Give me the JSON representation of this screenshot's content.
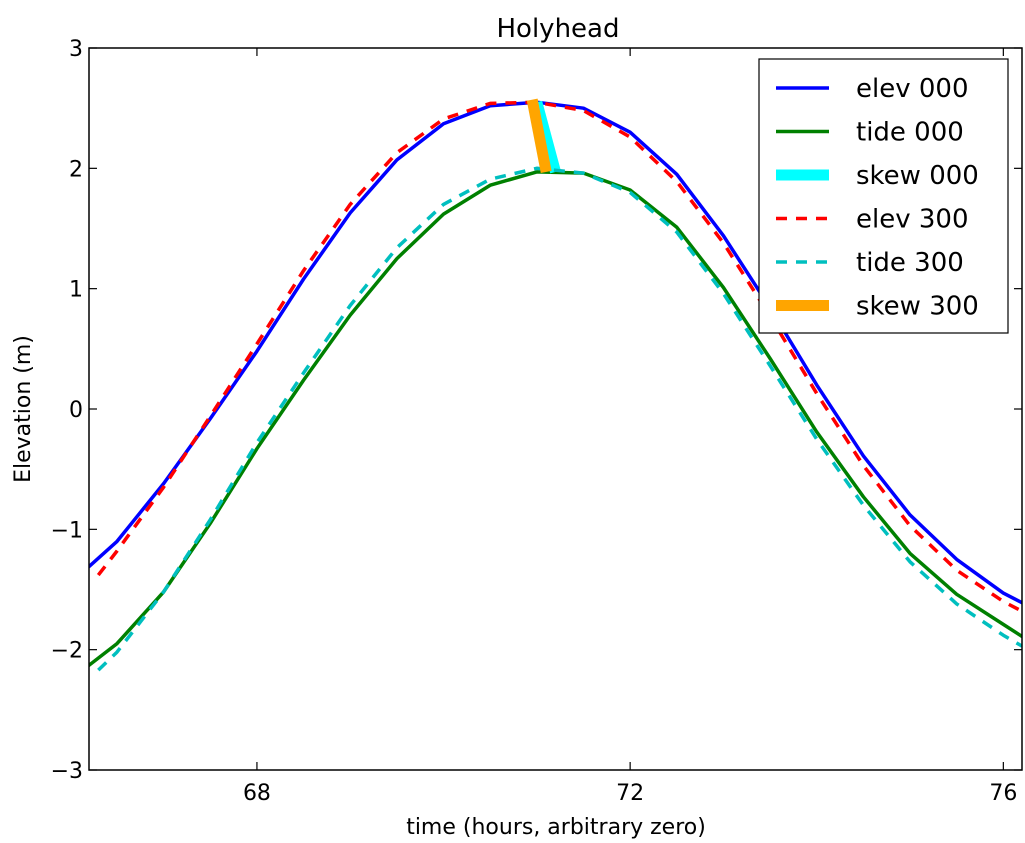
{
  "chart_data": {
    "type": "line",
    "title": "Holyhead",
    "xlabel": "time (hours, arbitrary zero)",
    "ylabel": "Elevation (m)",
    "xlim": [
      66.2,
      76.2
    ],
    "ylim": [
      -3,
      3
    ],
    "xticks": [
      68,
      72,
      76
    ],
    "xtick_labels": [
      "68",
      "72",
      "76"
    ],
    "yticks": [
      -3,
      -2,
      -1,
      0,
      1,
      2,
      3
    ],
    "ytick_labels": [
      "−3",
      "−2",
      "−1",
      "0",
      "1",
      "2",
      "3"
    ],
    "grid": false,
    "legend_position": "top-right",
    "series": [
      {
        "name": "elev 000",
        "color": "#0000ff",
        "style": "solid",
        "x": [
          66.2,
          66.5,
          67.0,
          67.5,
          68.0,
          68.5,
          69.0,
          69.5,
          70.0,
          70.5,
          71.0,
          71.5,
          72.0,
          72.5,
          73.0,
          73.5,
          74.0,
          74.5,
          75.0,
          75.5,
          76.0,
          76.2
        ],
        "y": [
          -1.31,
          -1.1,
          -0.62,
          -0.08,
          0.48,
          1.08,
          1.63,
          2.07,
          2.37,
          2.52,
          2.55,
          2.5,
          2.3,
          1.95,
          1.44,
          0.84,
          0.2,
          -0.39,
          -0.88,
          -1.25,
          -1.53,
          -1.61
        ]
      },
      {
        "name": "tide 000",
        "color": "#008000",
        "style": "solid",
        "x": [
          66.2,
          66.5,
          67.0,
          67.5,
          68.0,
          68.5,
          69.0,
          69.5,
          70.0,
          70.5,
          71.0,
          71.5,
          72.0,
          72.5,
          73.0,
          73.5,
          74.0,
          74.5,
          75.0,
          75.5,
          76.0,
          76.2
        ],
        "y": [
          -2.13,
          -1.95,
          -1.52,
          -0.95,
          -0.33,
          0.24,
          0.78,
          1.25,
          1.62,
          1.86,
          1.97,
          1.96,
          1.82,
          1.51,
          1.01,
          0.42,
          -0.19,
          -0.73,
          -1.2,
          -1.54,
          -1.79,
          -1.89
        ]
      },
      {
        "name": "skew 000",
        "color": "#00ffff",
        "style": "thick",
        "x": [
          71.0,
          71.2
        ],
        "y": [
          2.55,
          1.97
        ]
      },
      {
        "name": "elev 300",
        "color": "#ff0000",
        "style": "dashed",
        "x": [
          66.3,
          66.5,
          67.0,
          67.5,
          68.0,
          68.5,
          69.0,
          69.5,
          70.0,
          70.5,
          71.0,
          71.5,
          72.0,
          72.5,
          73.0,
          73.5,
          74.0,
          74.5,
          75.0,
          75.5,
          76.0,
          76.2
        ],
        "y": [
          -1.38,
          -1.18,
          -0.65,
          -0.06,
          0.54,
          1.15,
          1.7,
          2.13,
          2.41,
          2.54,
          2.55,
          2.48,
          2.26,
          1.89,
          1.38,
          0.77,
          0.13,
          -0.47,
          -0.97,
          -1.34,
          -1.6,
          -1.68
        ]
      },
      {
        "name": "tide 300",
        "color": "#00bfbf",
        "style": "dashed",
        "x": [
          66.3,
          66.5,
          67.0,
          67.5,
          68.0,
          68.5,
          69.0,
          69.5,
          70.0,
          70.5,
          71.0,
          71.5,
          72.0,
          72.5,
          73.0,
          73.5,
          74.0,
          74.5,
          75.0,
          75.5,
          76.0,
          76.2
        ],
        "y": [
          -2.17,
          -2.02,
          -1.52,
          -0.92,
          -0.28,
          0.3,
          0.86,
          1.34,
          1.7,
          1.91,
          2.0,
          1.96,
          1.8,
          1.47,
          0.96,
          0.36,
          -0.25,
          -0.8,
          -1.27,
          -1.62,
          -1.88,
          -1.97
        ]
      },
      {
        "name": "skew 300",
        "color": "#ffa500",
        "style": "thick",
        "x": [
          70.95,
          71.1
        ],
        "y": [
          2.57,
          1.97
        ]
      }
    ]
  }
}
